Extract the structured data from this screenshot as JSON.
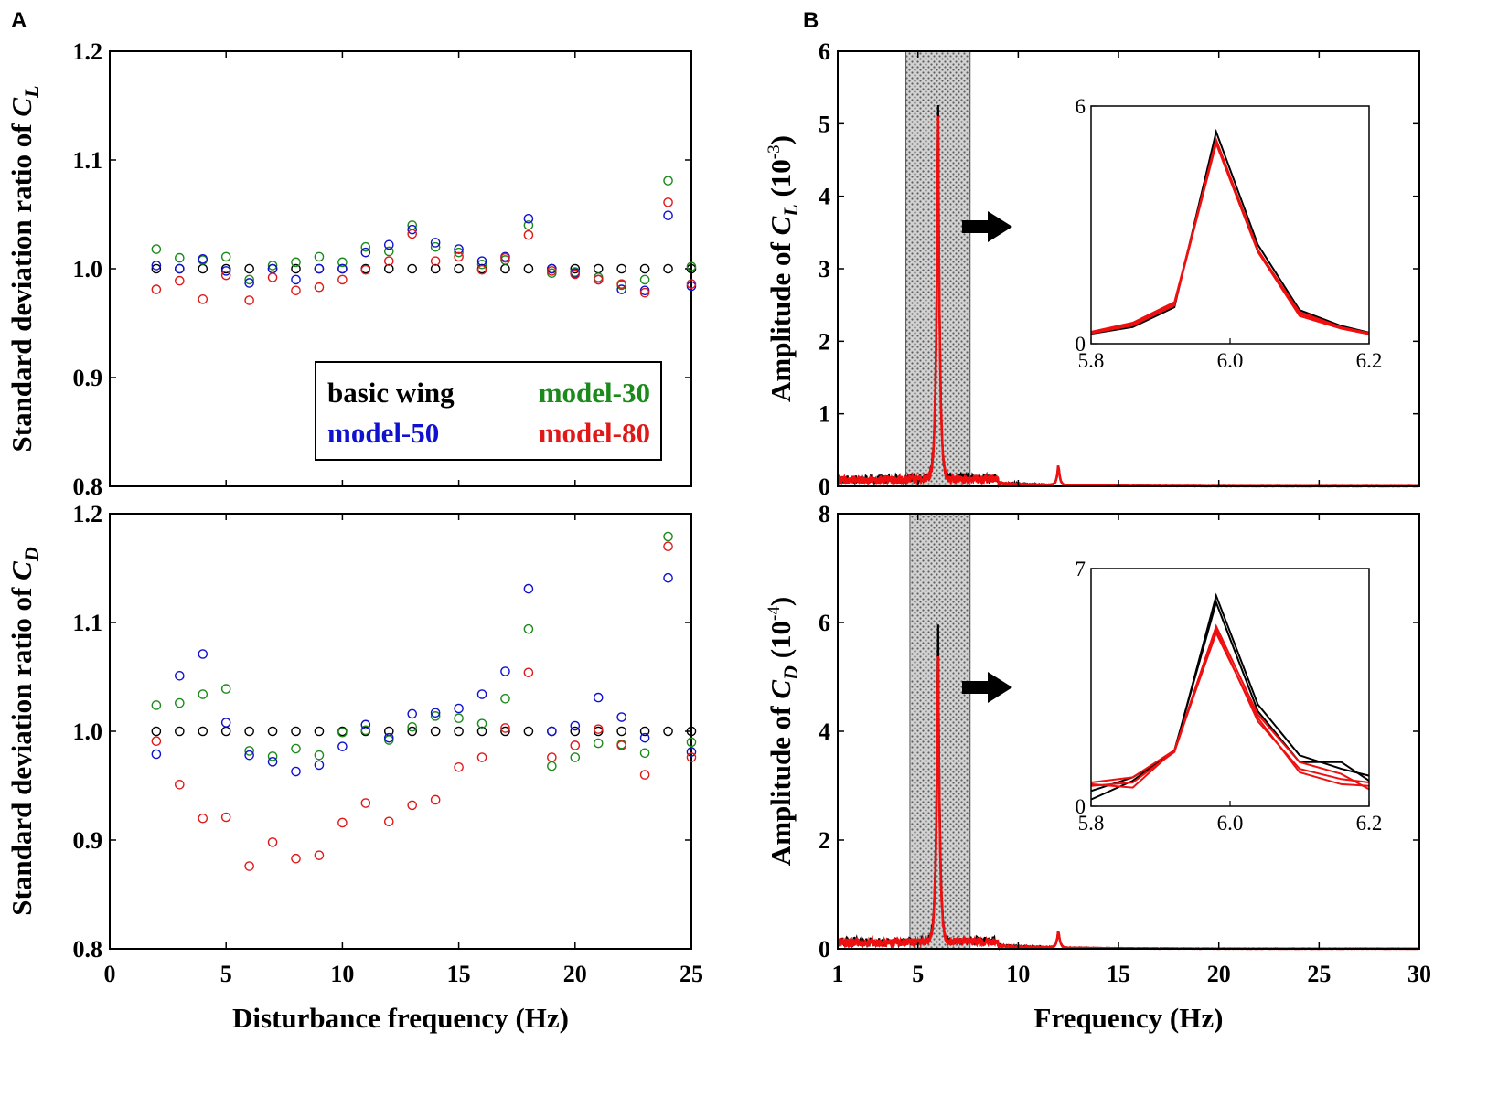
{
  "panels": {
    "a": "A",
    "b": "B"
  },
  "colors": {
    "basic": "#000000",
    "model30": "#1a8a1a",
    "model50": "#1010d0",
    "model80": "#e01818",
    "trace_red": "#ee1010",
    "shade": "#aaaaaa"
  },
  "chart_data": [
    {
      "id": "A-top",
      "type": "scatter",
      "ylabel_prefix": "Standard deviation ratio of ",
      "ylabel_var": "C",
      "ylabel_sub": "L",
      "xlim": [
        0,
        25
      ],
      "ylim": [
        0.8,
        1.2
      ],
      "xticks": [
        "0",
        "5",
        "10",
        "15",
        "20",
        "25"
      ],
      "yticks": [
        "0.8",
        "0.9",
        "1.0",
        "1.1",
        "1.2"
      ],
      "legend": [
        {
          "label": "basic wing",
          "color": "#000000"
        },
        {
          "label": "model-30",
          "color": "#1a8a1a"
        },
        {
          "label": "model-50",
          "color": "#1010d0"
        },
        {
          "label": "model-80",
          "color": "#e01818"
        }
      ],
      "x": [
        2,
        3,
        4,
        5,
        6,
        7,
        8,
        9,
        10,
        11,
        12,
        13,
        14,
        15,
        16,
        17,
        18,
        19,
        20,
        21,
        22,
        23,
        24,
        25
      ],
      "series": [
        {
          "name": "basic wing",
          "color": "#000000",
          "values": [
            1,
            1,
            1,
            1,
            1,
            1,
            1,
            1,
            1,
            1,
            1,
            1,
            1,
            1,
            1,
            1,
            1,
            1,
            1,
            1,
            1,
            1,
            1,
            1
          ]
        },
        {
          "name": "model-30",
          "color": "#1a8a1a",
          "values": [
            1.018,
            1.01,
            1.008,
            1.011,
            0.99,
            1.003,
            1.006,
            1.011,
            1.006,
            1.02,
            1.016,
            1.04,
            1.02,
            1.015,
            1.004,
            1.008,
            1.04,
            0.996,
            0.997,
            0.992,
            0.985,
            0.99,
            1.081,
            1.002
          ]
        },
        {
          "name": "model-50",
          "color": "#1010d0",
          "values": [
            1.003,
            1.0,
            1.009,
            0.998,
            0.987,
            1.0,
            0.99,
            1.0,
            1.0,
            1.015,
            1.022,
            1.036,
            1.024,
            1.018,
            1.007,
            1.011,
            1.046,
            1.0,
            0.996,
            0.99,
            0.981,
            0.98,
            1.049,
            0.984
          ]
        },
        {
          "name": "model-80",
          "color": "#e01818",
          "values": [
            0.981,
            0.989,
            0.972,
            0.994,
            0.971,
            0.992,
            0.98,
            0.983,
            0.99,
            0.999,
            1.007,
            1.032,
            1.007,
            1.011,
            0.999,
            1.01,
            1.031,
            0.998,
            0.995,
            0.99,
            0.986,
            0.978,
            1.061,
            0.986
          ]
        }
      ]
    },
    {
      "id": "A-bottom",
      "type": "scatter",
      "xlabel": "Disturbance frequency (Hz)",
      "ylabel_prefix": "Standard deviation ratio of ",
      "ylabel_var": "C",
      "ylabel_sub": "D",
      "xlim": [
        0,
        25
      ],
      "ylim": [
        0.8,
        1.2
      ],
      "xticks": [
        "0",
        "5",
        "10",
        "15",
        "20",
        "25"
      ],
      "yticks": [
        "0.8",
        "0.9",
        "1.0",
        "1.1",
        "1.2"
      ],
      "x": [
        2,
        3,
        4,
        5,
        6,
        7,
        8,
        9,
        10,
        11,
        12,
        13,
        14,
        15,
        16,
        17,
        18,
        19,
        20,
        21,
        22,
        23,
        24,
        25
      ],
      "series": [
        {
          "name": "basic wing",
          "color": "#000000",
          "values": [
            1,
            1,
            1,
            1,
            1,
            1,
            1,
            1,
            1,
            1,
            1,
            1,
            1,
            1,
            1,
            1,
            1,
            1,
            1,
            1,
            1,
            1,
            1,
            1
          ]
        },
        {
          "name": "model-30",
          "color": "#1a8a1a",
          "values": [
            1.024,
            1.026,
            1.034,
            1.039,
            0.982,
            0.977,
            0.984,
            0.978,
            0.999,
            1.001,
            0.992,
            1.004,
            1.014,
            1.012,
            1.007,
            1.03,
            1.094,
            0.968,
            0.976,
            0.989,
            0.988,
            0.98,
            1.179,
            0.99
          ]
        },
        {
          "name": "model-50",
          "color": "#1010d0",
          "values": [
            0.979,
            1.051,
            1.071,
            1.008,
            0.978,
            0.972,
            0.963,
            0.969,
            0.986,
            1.006,
            0.994,
            1.016,
            1.017,
            1.021,
            1.034,
            1.055,
            1.131,
            1.0,
            1.005,
            1.031,
            1.013,
            0.994,
            1.141,
            0.981
          ]
        },
        {
          "name": "model-80",
          "color": "#e01818",
          "values": [
            0.991,
            0.951,
            0.92,
            0.921,
            0.876,
            0.898,
            0.883,
            0.886,
            0.916,
            0.934,
            0.917,
            0.932,
            0.937,
            0.967,
            0.976,
            1.003,
            1.054,
            0.976,
            0.987,
            1.002,
            0.987,
            0.96,
            1.17,
            0.976
          ]
        }
      ]
    },
    {
      "id": "B-top",
      "type": "line",
      "ylabel_prefix": "Amplitude of ",
      "ylabel_var": "C",
      "ylabel_sub": "L",
      "ylabel_unit_base": "(10",
      "ylabel_unit_exp": "-3",
      "ylabel_unit_close": ")",
      "xlim": [
        1,
        30
      ],
      "ylim": [
        0,
        6
      ],
      "xticks": [
        "1",
        "5",
        "10",
        "15",
        "20",
        "25",
        "30"
      ],
      "yticks": [
        "0",
        "1",
        "2",
        "3",
        "4",
        "5",
        "6"
      ],
      "shaded_band_hz": [
        4.4,
        7.6
      ],
      "peak_hz": 6.0,
      "basic_peak": 5.42,
      "model_peak": 5.25,
      "harmonic_hz": 12.0,
      "harmonic_amp": 0.3,
      "inset": {
        "xlim": [
          5.8,
          6.2
        ],
        "ylim": [
          0,
          6
        ],
        "xticks": [
          "5.8",
          "6.0",
          "6.2"
        ],
        "yticks": [
          "0",
          "6"
        ],
        "x": [
          5.8,
          5.86,
          5.92,
          5.98,
          6.04,
          6.1,
          6.16,
          6.2
        ],
        "series": [
          {
            "name": "basic wing",
            "color": "#000000",
            "values": [
              0.25,
              0.42,
              0.92,
              5.35,
              2.5,
              0.85,
              0.45,
              0.28
            ]
          },
          {
            "name": "model-30",
            "color": "#ee1010",
            "values": [
              0.28,
              0.5,
              1.0,
              5.15,
              2.38,
              0.75,
              0.4,
              0.25
            ]
          },
          {
            "name": "model-50",
            "color": "#ee1010",
            "values": [
              0.26,
              0.46,
              0.97,
              5.05,
              2.32,
              0.7,
              0.38,
              0.24
            ]
          },
          {
            "name": "model-80",
            "color": "#ee1010",
            "values": [
              0.3,
              0.53,
              1.05,
              5.1,
              2.35,
              0.8,
              0.42,
              0.27
            ]
          }
        ]
      }
    },
    {
      "id": "B-bottom",
      "type": "line",
      "xlabel": "Frequency (Hz)",
      "ylabel_prefix": "Amplitude of ",
      "ylabel_var": "C",
      "ylabel_sub": "D",
      "ylabel_unit_base": "(10",
      "ylabel_unit_exp": "-4",
      "ylabel_unit_close": ")",
      "xlim": [
        1,
        30
      ],
      "ylim": [
        0,
        8
      ],
      "xticks": [
        "1",
        "5",
        "10",
        "15",
        "20",
        "25",
        "30"
      ],
      "yticks": [
        "0",
        "2",
        "4",
        "6",
        "8"
      ],
      "shaded_band_hz": [
        4.6,
        7.6
      ],
      "peak_hz": 6.0,
      "basic_peak": 6.1,
      "model_peak": 5.6,
      "harmonic_hz": 12.0,
      "harmonic_amp": 0.35,
      "inset": {
        "xlim": [
          5.8,
          6.2
        ],
        "ylim": [
          0,
          7
        ],
        "xticks": [
          "5.8",
          "6.0",
          "6.2"
        ],
        "yticks": [
          "0",
          "7"
        ],
        "x": [
          5.8,
          5.86,
          5.92,
          5.98,
          6.04,
          6.1,
          6.16,
          6.2
        ],
        "series": [
          {
            "name": "basic wing",
            "color": "#000000",
            "values": [
              0.45,
              0.85,
              1.6,
              6.2,
              3.0,
              1.5,
              1.1,
              0.9
            ]
          },
          {
            "name": "basic wing (repeat)",
            "color": "#000000",
            "values": [
              0.2,
              0.75,
              1.65,
              6.0,
              2.8,
              1.3,
              1.3,
              0.75
            ]
          },
          {
            "name": "model-30",
            "color": "#ee1010",
            "values": [
              0.6,
              0.7,
              1.6,
              5.2,
              2.5,
              1.1,
              0.8,
              0.7
            ]
          },
          {
            "name": "model-50",
            "color": "#ee1010",
            "values": [
              0.7,
              0.85,
              1.65,
              5.3,
              2.7,
              1.3,
              0.95,
              0.5
            ]
          },
          {
            "name": "model-80",
            "color": "#ee1010",
            "values": [
              0.65,
              0.55,
              1.65,
              5.1,
              2.6,
              1.0,
              0.65,
              0.6
            ]
          }
        ]
      }
    }
  ]
}
